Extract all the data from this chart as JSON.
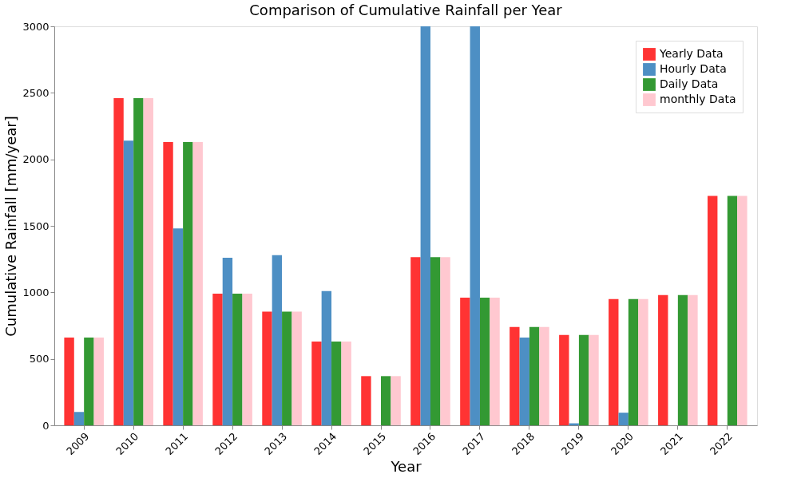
{
  "chart_data": {
    "type": "bar",
    "title": "Comparison of Cumulative Rainfall per Year",
    "xlabel": "Year",
    "ylabel": "Cumulative Rainfall [mm/year]",
    "categories": [
      "2009",
      "2010",
      "2011",
      "2012",
      "2013",
      "2014",
      "2015",
      "2016",
      "2017",
      "2018",
      "2019",
      "2020",
      "2021",
      "2022"
    ],
    "series": [
      {
        "name": "Yearly Data",
        "color": "#ff3333",
        "values": [
          660,
          2460,
          2130,
          990,
          855,
          630,
          370,
          1265,
          960,
          740,
          680,
          950,
          980,
          1725
        ]
      },
      {
        "name": "Hourly Data",
        "color": "#4d8fc4",
        "values": [
          100,
          2140,
          1480,
          1260,
          1280,
          1010,
          0,
          3000,
          3000,
          660,
          15,
          95,
          0,
          null
        ]
      },
      {
        "name": "Daily Data",
        "color": "#339933",
        "values": [
          660,
          2460,
          2130,
          990,
          855,
          630,
          370,
          1265,
          960,
          740,
          680,
          950,
          980,
          1725
        ]
      },
      {
        "name": "monthly Data",
        "color": "#ffc8d0",
        "values": [
          660,
          2460,
          2130,
          990,
          855,
          630,
          370,
          1265,
          960,
          740,
          680,
          950,
          980,
          1725
        ]
      }
    ],
    "ylim": [
      0,
      3000
    ],
    "yticks": [
      0,
      500,
      1000,
      1500,
      2000,
      2500,
      3000
    ],
    "grid": false,
    "legend": "top right"
  }
}
